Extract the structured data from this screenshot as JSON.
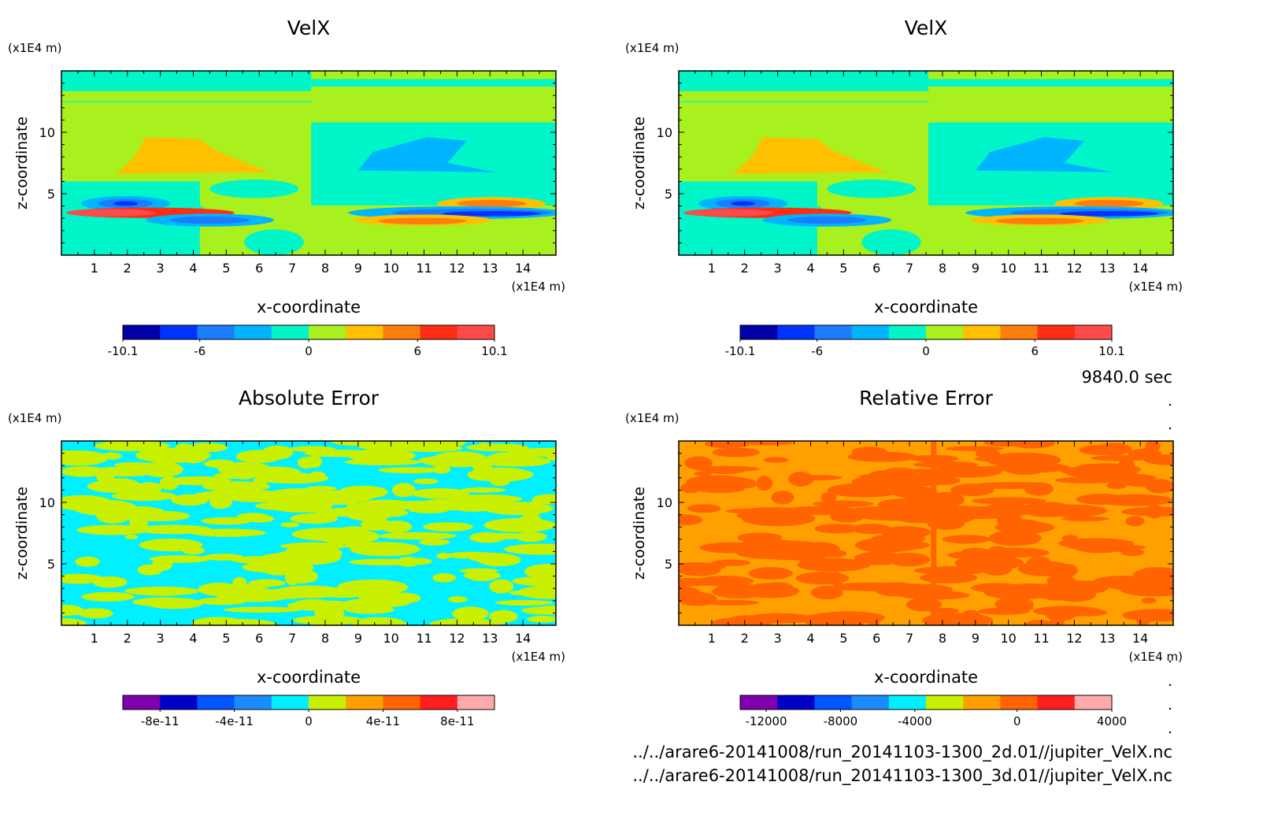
{
  "time_label": "9840.0 sec",
  "files": [
    "../../arare6-20141008/run_20141103-1300_2d.01//jupiter_VelX.nc",
    "../../arare6-20141008/run_20141103-1300_3d.01//jupiter_VelX.nc"
  ],
  "chart_data": [
    {
      "type": "heatmap",
      "title": "VelX",
      "xlabel": "x-coordinate",
      "ylabel": "z-coordinate",
      "x_unit": "(x1E4 m)",
      "y_unit": "(x1E4 m)",
      "xlim": [
        0,
        15
      ],
      "ylim": [
        0,
        15
      ],
      "x_ticks": [
        "1",
        "2",
        "3",
        "4",
        "5",
        "6",
        "7",
        "8",
        "9",
        "10",
        "11",
        "12",
        "13",
        "14"
      ],
      "y_ticks": [
        "5",
        "10"
      ],
      "colorbar": {
        "colors": [
          "#0000aa",
          "#0033ff",
          "#1a7dff",
          "#00b5ff",
          "#00f5c8",
          "#a8f01e",
          "#ffc000",
          "#ff7d0a",
          "#ff2d14",
          "#ff4a4a"
        ],
        "labels": [
          "-10.1",
          "-6",
          "0",
          "6",
          "10.1"
        ]
      }
    },
    {
      "type": "heatmap",
      "title": "VelX",
      "xlabel": "x-coordinate",
      "ylabel": "z-coordinate",
      "x_unit": "(x1E4 m)",
      "y_unit": "(x1E4 m)",
      "xlim": [
        0,
        15
      ],
      "ylim": [
        0,
        15
      ],
      "x_ticks": [
        "1",
        "2",
        "3",
        "4",
        "5",
        "6",
        "7",
        "8",
        "9",
        "10",
        "11",
        "12",
        "13",
        "14"
      ],
      "y_ticks": [
        "5",
        "10"
      ],
      "colorbar": {
        "colors": [
          "#0000aa",
          "#0033ff",
          "#1a7dff",
          "#00b5ff",
          "#00f5c8",
          "#a8f01e",
          "#ffc000",
          "#ff7d0a",
          "#ff2d14",
          "#ff4a4a"
        ],
        "labels": [
          "-10.1",
          "-6",
          "0",
          "6",
          "10.1"
        ]
      }
    },
    {
      "type": "heatmap",
      "title": "Absolute Error",
      "xlabel": "x-coordinate",
      "ylabel": "z-coordinate",
      "x_unit": "(x1E4 m)",
      "y_unit": "(x1E4 m)",
      "xlim": [
        0,
        15
      ],
      "ylim": [
        0,
        15
      ],
      "x_ticks": [
        "1",
        "2",
        "3",
        "4",
        "5",
        "6",
        "7",
        "8",
        "9",
        "10",
        "11",
        "12",
        "13",
        "14"
      ],
      "y_ticks": [
        "5",
        "10"
      ],
      "colorbar": {
        "colors": [
          "#8000b0",
          "#0000c8",
          "#0055ff",
          "#1a8cff",
          "#00f0ff",
          "#c8f000",
          "#ffa000",
          "#ff6400",
          "#ff1e1e",
          "#ffaaaa"
        ],
        "labels": [
          "-8e-11",
          "-4e-11",
          "0",
          "4e-11",
          "8e-11"
        ]
      }
    },
    {
      "type": "heatmap",
      "title": "Relative Error",
      "xlabel": "x-coordinate",
      "ylabel": "z-coordinate",
      "x_unit": "(x1E4 m)",
      "y_unit": "(x1E4 m)",
      "xlim": [
        0,
        15
      ],
      "ylim": [
        0,
        15
      ],
      "x_ticks": [
        "1",
        "2",
        "3",
        "4",
        "5",
        "6",
        "7",
        "8",
        "9",
        "10",
        "11",
        "12",
        "13",
        "14"
      ],
      "y_ticks": [
        "5",
        "10"
      ],
      "colorbar": {
        "colors": [
          "#8000b0",
          "#0000c8",
          "#0055ff",
          "#1a8cff",
          "#00f0ff",
          "#c8f000",
          "#ffa000",
          "#ff6400",
          "#ff1e1e",
          "#ffaaaa"
        ],
        "labels": [
          "-12000",
          "-8000",
          "-4000",
          "0",
          "4000"
        ]
      }
    }
  ]
}
